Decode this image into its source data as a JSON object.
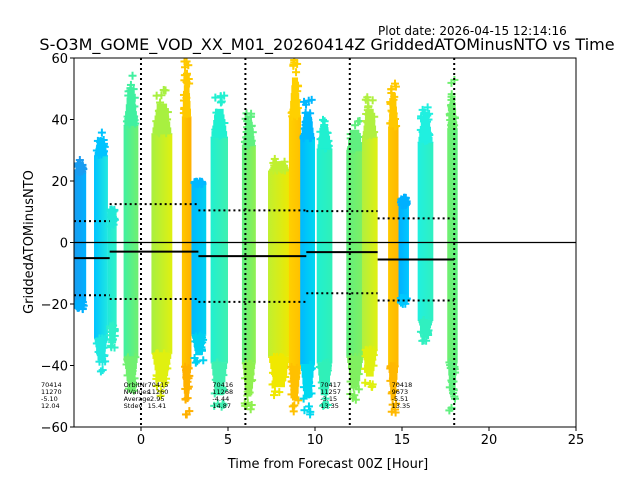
{
  "plot_date": "Plot date: 2026-04-15 12:14:16",
  "chart_data": {
    "type": "scatter",
    "title": "S-O3M_GOME_VOD_XX_M01_20260414Z GriddedATOMinusNTO vs Time",
    "xlabel": "Time from Forecast 00Z [Hour]",
    "ylabel": "GriddedATOMinusNTO",
    "xlim": [
      -3.85,
      25
    ],
    "ylim": [
      -60,
      60
    ],
    "xticks": [
      0,
      5,
      10,
      15,
      20,
      25
    ],
    "yticks": [
      -60,
      -40,
      -20,
      0,
      20,
      40,
      60
    ],
    "xtick_labels": [
      "0",
      "5",
      "10",
      "15",
      "20",
      "25"
    ],
    "ytick_labels": [
      "−60",
      "−40",
      "−20",
      "0",
      "20",
      "40",
      "60"
    ],
    "zero_line": 0,
    "forecast_boundaries": [
      0,
      6,
      12,
      18
    ],
    "stripes": [
      {
        "x0": -3.85,
        "x1": -3.15,
        "ymin": -22,
        "ymax": 27,
        "color": "#1a9cf0",
        "color2": "#00b0ff"
      },
      {
        "x0": -2.7,
        "x1": -1.9,
        "ymin": -42,
        "ymax": 37,
        "color": "#00c3ff",
        "color2": "#20e8e0"
      },
      {
        "x0": -1.9,
        "x1": -1.4,
        "ymin": -35,
        "ymax": 5,
        "color": "#20e8d8",
        "color2": "#30f0c8"
      },
      {
        "x0": -1.0,
        "x1": -0.15,
        "ymin": -52,
        "ymax": 55,
        "color": "#40f0a0",
        "color2": "#70f070"
      },
      {
        "x0": 0.6,
        "x1": 1.8,
        "ymin": -50,
        "ymax": 50,
        "color": "#a8f040",
        "color2": "#e0f010"
      },
      {
        "x0": 2.35,
        "x1": 2.9,
        "ymin": -57,
        "ymax": 60,
        "color": "#ffc800",
        "color2": "#ffb000"
      },
      {
        "x0": 2.9,
        "x1": 3.75,
        "ymin": -40,
        "ymax": 20,
        "color": "#00b8ff",
        "color2": "#00d0f0"
      },
      {
        "x0": 4.0,
        "x1": 5.0,
        "ymin": -55,
        "ymax": 48,
        "color": "#20f0d0",
        "color2": "#40f0b0"
      },
      {
        "x0": 5.8,
        "x1": 6.6,
        "ymin": -55,
        "ymax": 43,
        "color": "#60f080",
        "color2": "#90f050"
      },
      {
        "x0": 7.3,
        "x1": 8.6,
        "ymin": -52,
        "ymax": 28,
        "color": "#c0f030",
        "color2": "#f0e800"
      },
      {
        "x0": 8.5,
        "x1": 9.2,
        "ymin": -57,
        "ymax": 60,
        "color": "#ffd000",
        "color2": "#ffc000"
      },
      {
        "x0": 9.15,
        "x1": 10.0,
        "ymin": -56,
        "ymax": 47,
        "color": "#00b8ff",
        "color2": "#00d8f0"
      },
      {
        "x0": 10.1,
        "x1": 11.0,
        "ymin": -55,
        "ymax": 41,
        "color": "#20f0d0",
        "color2": "#30f0b8"
      },
      {
        "x0": 11.8,
        "x1": 12.8,
        "ymin": -52,
        "ymax": 40,
        "color": "#60f080",
        "color2": "#80f060"
      },
      {
        "x0": 12.7,
        "x1": 13.6,
        "ymin": -48,
        "ymax": 48,
        "color": "#b0f040",
        "color2": "#e0f010"
      },
      {
        "x0": 14.2,
        "x1": 14.8,
        "ymin": -57,
        "ymax": 54,
        "color": "#ffc800",
        "color2": "#ffb800"
      },
      {
        "x0": 14.8,
        "x1": 15.4,
        "ymin": -20,
        "ymax": 12,
        "color": "#00b0ff",
        "color2": "#00c8ff"
      },
      {
        "x0": 15.9,
        "x1": 16.8,
        "ymin": -32,
        "ymax": 45,
        "color": "#20f0e0",
        "color2": "#30f0c0"
      },
      {
        "x0": 17.6,
        "x1": 18.2,
        "ymin": -55,
        "ymax": 53,
        "color": "#70f070",
        "color2": "#60f080"
      }
    ],
    "orbits": [
      {
        "orbit": "70414",
        "nvalues": "11270",
        "average": "-5.10",
        "stdev": "12.04",
        "x_start": -3.85,
        "x_end": -1.8,
        "mean": -5.1,
        "upper": 6.94,
        "lower": -17.14
      },
      {
        "orbit": "70415",
        "nvalues": "11260",
        "average": "-2.95",
        "stdev": "15.41",
        "x_start": -1.8,
        "x_end": 3.3,
        "mean": -2.95,
        "upper": 12.46,
        "lower": -18.36
      },
      {
        "orbit": "70416",
        "nvalues": "11268",
        "average": "-4.44",
        "stdev": "14.87",
        "x_start": 3.3,
        "x_end": 9.5,
        "mean": -4.44,
        "upper": 10.43,
        "lower": -19.31
      },
      {
        "orbit": "70417",
        "nvalues": "11257",
        "average": "-3.15",
        "stdev": "13.35",
        "x_start": 9.5,
        "x_end": 13.6,
        "mean": -3.15,
        "upper": 10.2,
        "lower": -16.5
      },
      {
        "orbit": "70418",
        "nvalues": "9673",
        "average": "-5.51",
        "stdev": "13.35",
        "x_start": 13.6,
        "x_end": 18.0,
        "mean": -5.51,
        "upper": 7.84,
        "lower": -18.86
      }
    ],
    "stat_row_labels": [
      "OrbitNr",
      "NValues",
      "Average",
      "Stdev"
    ],
    "legend": "none",
    "grid": false
  }
}
